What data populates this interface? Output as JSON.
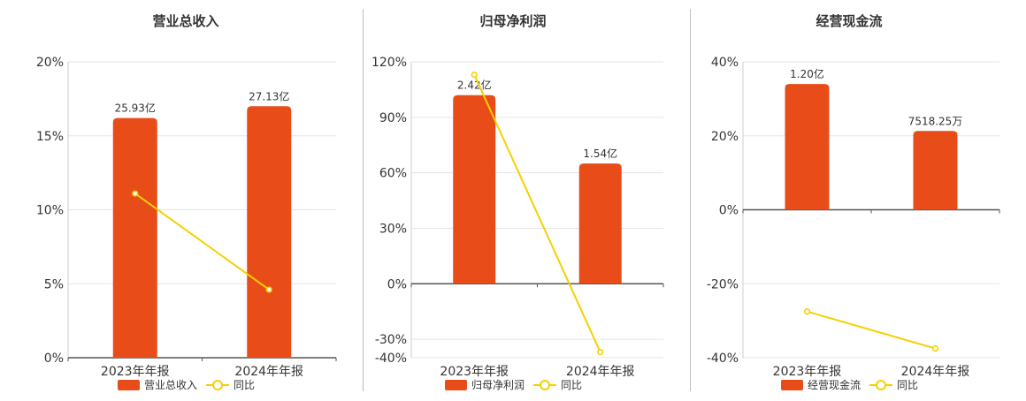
{
  "chart_data": [
    {
      "type": "bar",
      "title": "营业总收入",
      "categories": [
        "2023年年报",
        "2024年年报"
      ],
      "series": [
        {
          "name": "营业总收入",
          "kind": "bar",
          "values": [
            16.2,
            17.0
          ],
          "labels": [
            "25.93亿",
            "27.13亿"
          ]
        },
        {
          "name": "同比",
          "kind": "line",
          "values": [
            11.1,
            4.6
          ]
        }
      ],
      "ylim": [
        0,
        20
      ],
      "yticks": [
        0,
        5,
        10,
        15,
        20
      ],
      "ytick_labels": [
        "0%",
        "5%",
        "10%",
        "15%",
        "20%"
      ],
      "grid": true,
      "legend_position": "bottom"
    },
    {
      "type": "bar",
      "title": "归母净利润",
      "categories": [
        "2023年年报",
        "2024年年报"
      ],
      "series": [
        {
          "name": "归母净利润",
          "kind": "bar",
          "values": [
            102,
            65
          ],
          "labels": [
            "2.42亿",
            "1.54亿"
          ]
        },
        {
          "name": "同比",
          "kind": "line",
          "values": [
            113,
            -37
          ]
        }
      ],
      "ylim": [
        -40,
        120
      ],
      "yticks": [
        -40,
        -30,
        0,
        30,
        60,
        90,
        120
      ],
      "ytick_labels": [
        "-40%",
        "-30%",
        "0%",
        "30%",
        "60%",
        "90%",
        "120%"
      ],
      "grid": true,
      "legend_position": "bottom"
    },
    {
      "type": "bar",
      "title": "经营现金流",
      "categories": [
        "2023年年报",
        "2024年年报"
      ],
      "series": [
        {
          "name": "经营现金流",
          "kind": "bar",
          "values": [
            34,
            21.3
          ],
          "labels": [
            "1.20亿",
            "7518.25万"
          ]
        },
        {
          "name": "同比",
          "kind": "line",
          "values": [
            -27.5,
            -37.5
          ]
        }
      ],
      "ylim": [
        -40,
        40
      ],
      "yticks": [
        -40,
        -20,
        0,
        20,
        40
      ],
      "ytick_labels": [
        "-40%",
        "-20%",
        "0%",
        "20%",
        "40%"
      ],
      "grid": true,
      "legend_position": "bottom"
    }
  ],
  "colors": {
    "bar": "#e84c19",
    "line": "#f5d000",
    "grid": "#e6e6e6",
    "axis": "#555555",
    "text": "#333333"
  }
}
